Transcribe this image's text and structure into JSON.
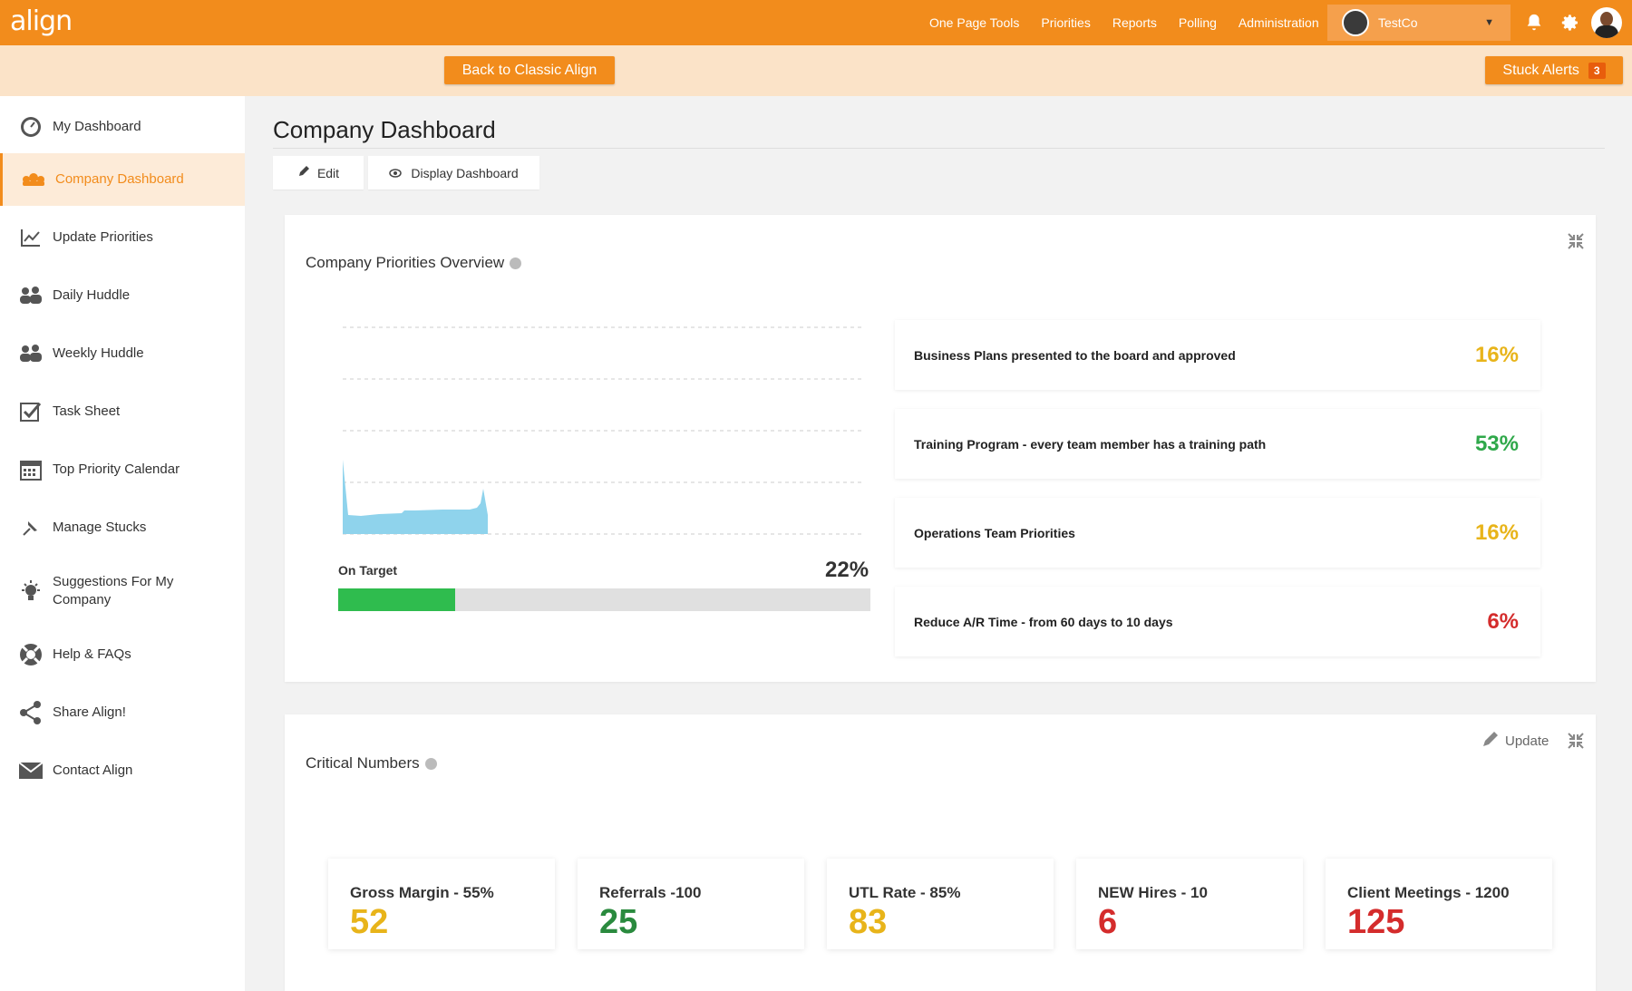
{
  "app": {
    "logo": "align"
  },
  "topnav": {
    "links": [
      "One Page Tools",
      "Priorities",
      "Reports",
      "Polling",
      "Administration"
    ],
    "company": "TestCo"
  },
  "subbar": {
    "classic_label": "Back to Classic Align",
    "stuck_label": "Stuck Alerts",
    "stuck_count": "3"
  },
  "sidebar": {
    "items": [
      {
        "label": "My Dashboard",
        "icon": "dashboard-gauge-icon"
      },
      {
        "label": "Company Dashboard",
        "icon": "company-group-icon"
      },
      {
        "label": "Update Priorities",
        "icon": "line-chart-icon"
      },
      {
        "label": "Daily Huddle",
        "icon": "team-icon"
      },
      {
        "label": "Weekly Huddle",
        "icon": "team-icon"
      },
      {
        "label": "Task Sheet",
        "icon": "checkbox-icon"
      },
      {
        "label": "Top Priority Calendar",
        "icon": "calendar-icon"
      },
      {
        "label": "Manage Stucks",
        "icon": "pin-icon"
      },
      {
        "label": "Suggestions For My Company",
        "icon": "lightbulb-icon"
      },
      {
        "label": "Help & FAQs",
        "icon": "lifebuoy-icon"
      },
      {
        "label": "Share Align!",
        "icon": "share-icon"
      },
      {
        "label": "Contact Align",
        "icon": "envelope-icon"
      }
    ]
  },
  "main": {
    "title": "Company Dashboard",
    "edit_label": "Edit",
    "display_label": "Display Dashboard"
  },
  "priorities_overview": {
    "title": "Company Priorities Overview",
    "on_target_label": "On Target",
    "on_target_pct": "22%",
    "on_target_fraction": 0.22,
    "items": [
      {
        "label": "Business Plans presented to the board and approved",
        "pct": "16%",
        "color": "#e8b41a"
      },
      {
        "label": "Training Program - every team member has a training path",
        "pct": "53%",
        "color": "#2fa84a"
      },
      {
        "label": "Operations Team Priorities",
        "pct": "16%",
        "color": "#e8b41a"
      },
      {
        "label": "Reduce A/R Time - from 60 days to 10 days",
        "pct": "6%",
        "color": "#d42c2c"
      }
    ],
    "area_color": "#8fd3ec"
  },
  "critical_numbers": {
    "title": "Critical Numbers",
    "update_label": "Update",
    "items": [
      {
        "label": "Gross Margin - 55%",
        "value": "52",
        "color": "#e8b41a"
      },
      {
        "label": "Referrals -100",
        "value": "25",
        "color": "#2a8a3e"
      },
      {
        "label": "UTL Rate - 85%",
        "value": "83",
        "color": "#e8b41a"
      },
      {
        "label": "NEW Hires - 10",
        "value": "6",
        "color": "#d42c2c"
      },
      {
        "label": "Client Meetings - 1200",
        "value": "125",
        "color": "#d42c2c"
      }
    ]
  },
  "colors": {
    "brand": "#f28c1c",
    "brand_light": "#fbe3c8",
    "success": "#2fbc4e"
  }
}
